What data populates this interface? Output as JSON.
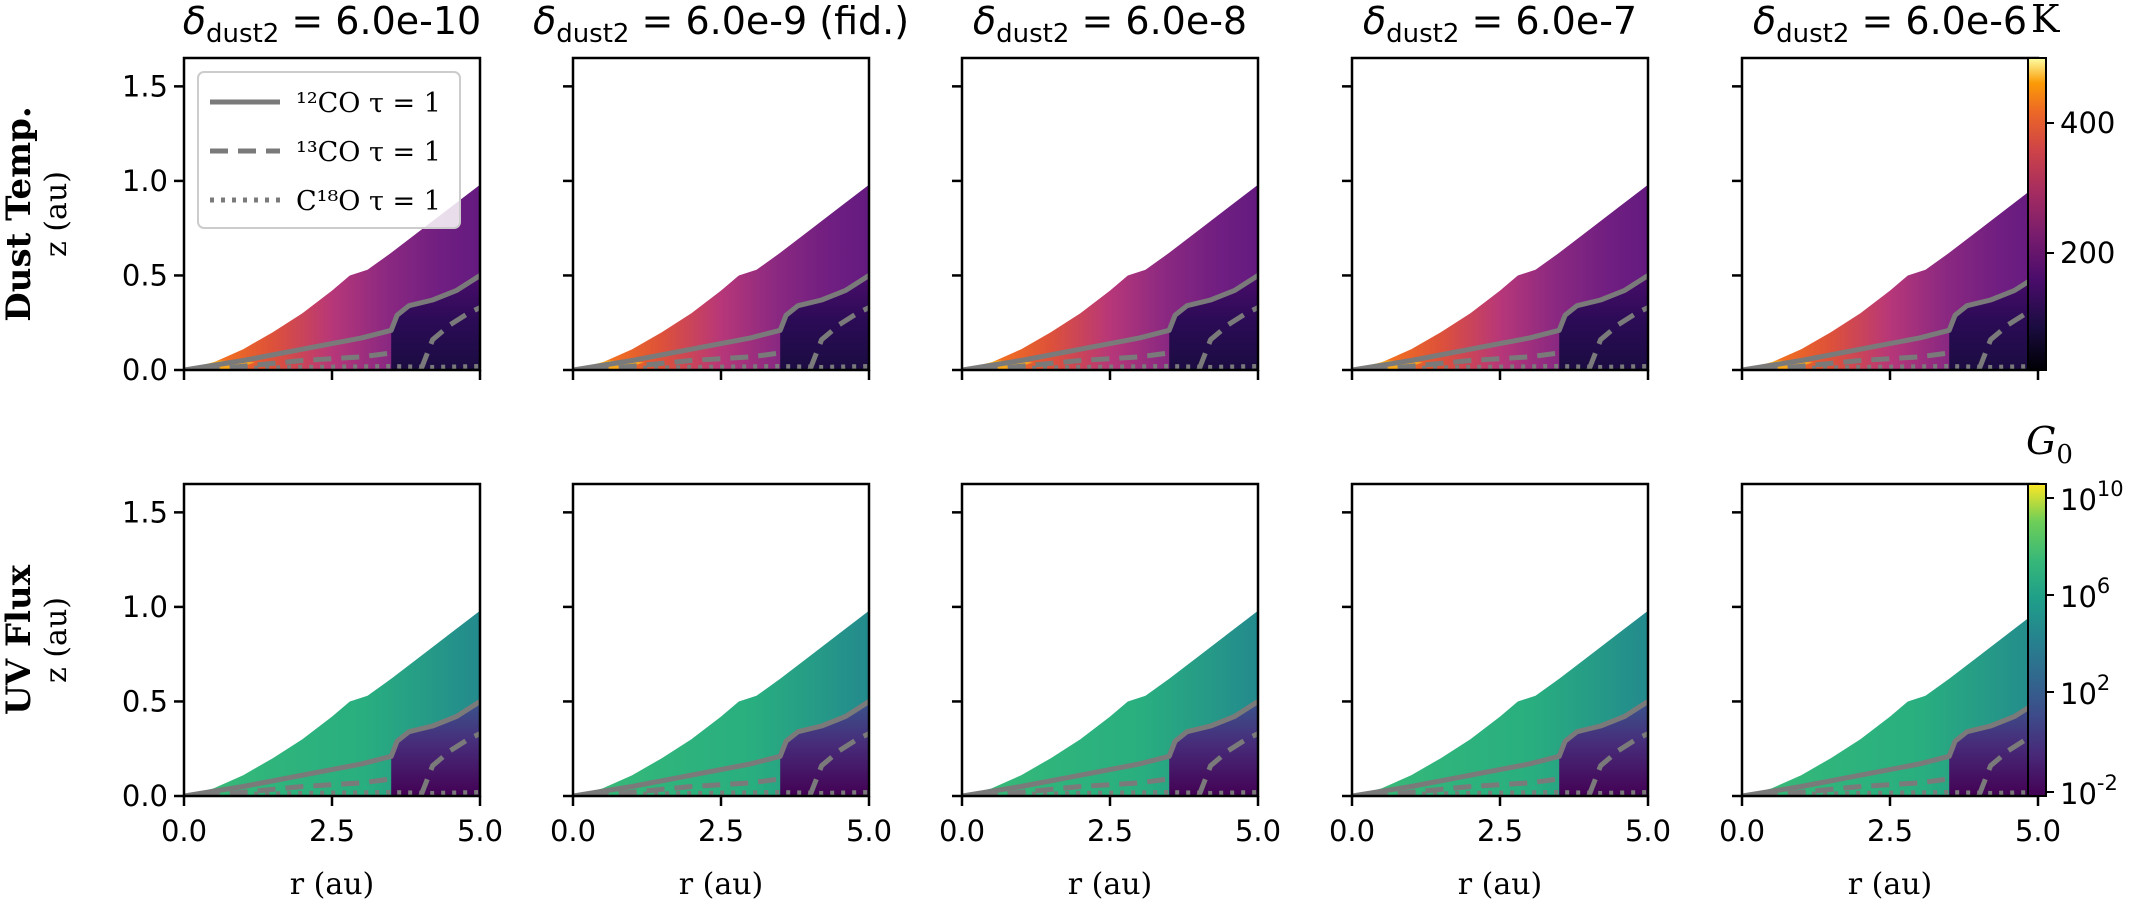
{
  "chart_data": {
    "type": "heatmap",
    "panel_titles": [
      "δdust2 = 6.0e-10",
      "δdust2 = 6.0e-9 (fid.)",
      "δdust2 = 6.0e-8",
      "δdust2 = 6.0e-7",
      "δdust2 = 6.0e-6"
    ],
    "title_parts": [
      {
        "value": "6.0e-10",
        "suffix": ""
      },
      {
        "value": "6.0e-9",
        "suffix": " (fid.)"
      },
      {
        "value": "6.0e-8",
        "suffix": ""
      },
      {
        "value": "6.0e-7",
        "suffix": ""
      },
      {
        "value": "6.0e-6",
        "suffix": ""
      }
    ],
    "delta_symbol": "δ",
    "delta_subscript": "dust2",
    "rows": [
      {
        "label": "Dust Temp.",
        "colorbar_label": "K",
        "colormap": "inferno",
        "colorbar_ticks": [
          "400",
          "200"
        ],
        "colorbar_range": [
          20,
          500
        ]
      },
      {
        "label": "UV Flux",
        "colorbar_label": "G0",
        "colormap": "viridis",
        "colorbar_ticks": [
          "10^10",
          "10^6",
          "10^2",
          "10^-2"
        ],
        "colorbar_range": [
          "1e-2",
          "1e10"
        ]
      }
    ],
    "xlabel": "r (au)",
    "ylabel": "z (au)",
    "xlim": [
      0.0,
      5.0
    ],
    "ylim": [
      0.0,
      1.65
    ],
    "xticks": [
      "0.0",
      "2.5",
      "5.0"
    ],
    "yticks": [
      "0.0",
      "0.5",
      "1.0",
      "1.5"
    ],
    "disk_surface": {
      "r": [
        0.0,
        0.5,
        1.0,
        1.5,
        2.0,
        2.5,
        2.8,
        3.1,
        3.5,
        4.0,
        4.5,
        5.0
      ],
      "z": [
        0.0,
        0.04,
        0.11,
        0.2,
        0.3,
        0.42,
        0.5,
        0.53,
        0.62,
        0.74,
        0.86,
        0.98
      ]
    },
    "legend": [
      {
        "label": "¹²CO τ = 1",
        "style": "solid"
      },
      {
        "label": "¹³CO τ = 1",
        "style": "dashed"
      },
      {
        "label": "C¹⁸O τ = 1",
        "style": "dotted"
      }
    ],
    "tau_surfaces": {
      "12CO": {
        "r": [
          0.0,
          1.0,
          2.0,
          3.0,
          3.5,
          3.6,
          3.8,
          4.2,
          4.6,
          5.0
        ],
        "z": [
          0.0,
          0.05,
          0.11,
          0.17,
          0.21,
          0.29,
          0.34,
          0.37,
          0.42,
          0.5
        ]
      },
      "13CO": {
        "r": [
          0.3,
          1.0,
          2.0,
          3.0,
          3.5
        ],
        "z": [
          0.0,
          0.02,
          0.05,
          0.07,
          0.09
        ]
      },
      "13CO_outer": {
        "r": [
          4.0,
          4.2,
          4.5,
          4.8,
          5.0
        ],
        "z": [
          0.0,
          0.16,
          0.24,
          0.3,
          0.33
        ]
      },
      "C18O": {
        "r": [
          1.0,
          2.0,
          3.0,
          3.5,
          4.2,
          5.0
        ],
        "z": [
          0.01,
          0.015,
          0.018,
          0.02,
          0.015,
          0.02
        ]
      }
    }
  }
}
